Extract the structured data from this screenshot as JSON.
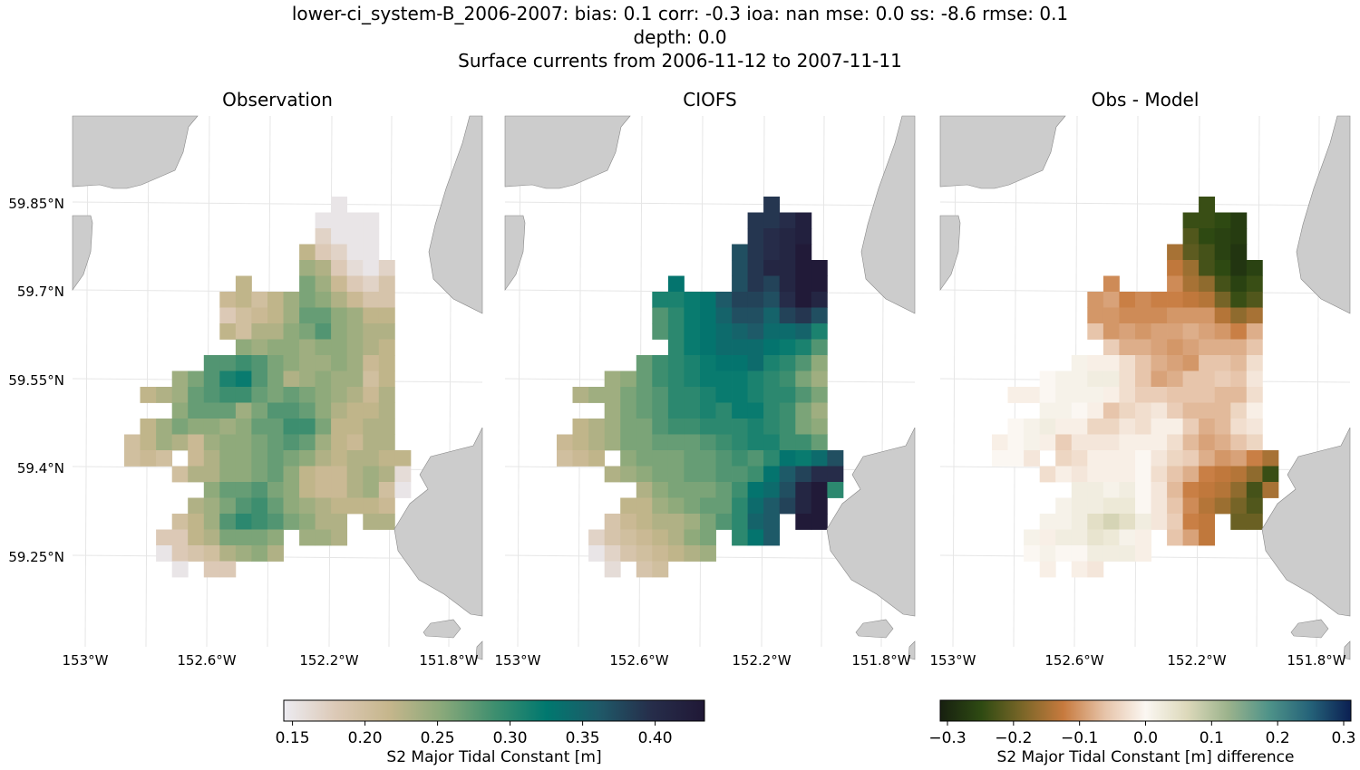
{
  "title": {
    "line1": "lower-ci_system-B_2006-2007: bias: 0.1  corr: -0.3  ioa: nan  mse: 0.0  ss: -8.6  rmse: 0.1",
    "line2": "depth: 0.0",
    "line3": "Surface currents from 2006-11-12 to 2007-11-11"
  },
  "chart_data": {
    "type": "heatmap",
    "panels": [
      "Observation",
      "CIOFS",
      "Obs - Model"
    ],
    "lon_ticks": [
      "153°W",
      "152.6°W",
      "152.2°W",
      "151.8°W"
    ],
    "lat_ticks": [
      "59.85°N",
      "59.7°N",
      "59.55°N",
      "59.4°N",
      "59.25°N"
    ],
    "grid": true,
    "land_color": "#cccccc",
    "value_colorbar": {
      "label": "S2 Major Tidal Constant [m]",
      "range": [
        0.144,
        0.434
      ],
      "ticks": [
        "0.15",
        "0.20",
        "0.25",
        "0.30",
        "0.35",
        "0.40"
      ],
      "colors": [
        "#ecebf1",
        "#dcc9b6",
        "#c6b68c",
        "#8aa97a",
        "#3f8f6f",
        "#00786f",
        "#1f5968",
        "#262d4a",
        "#201836"
      ]
    },
    "diff_colorbar": {
      "label": "S2 Major Tidal Constant [m] difference",
      "range": [
        -0.311,
        0.311
      ],
      "ticks": [
        "−0.3",
        "−0.2",
        "−0.1",
        "0.0",
        "0.1",
        "0.2",
        "0.3"
      ],
      "colors": [
        "#172010",
        "#2e4a12",
        "#7a6628",
        "#c77a3e",
        "#e6c3a8",
        "#fbf7f2",
        "#ddd9bb",
        "#9cb38c",
        "#4f9389",
        "#256379",
        "#0b1f52"
      ]
    },
    "first_col": 0,
    "observation": [
      [
        13,
        [
          0.15
        ]
      ],
      [
        12,
        [
          0.15,
          0.15,
          0.15,
          0.15
        ]
      ],
      [
        12,
        [
          0.17,
          0.15,
          0.15,
          0.15
        ]
      ],
      [
        11,
        [
          0.22,
          0.18,
          0.17,
          0.15,
          0.15
        ]
      ],
      [
        11,
        [
          0.24,
          0.23,
          0.18,
          0.16,
          0.15,
          0.17
        ]
      ],
      [
        7,
        [
          0.22,
          null,
          null,
          null,
          0.26,
          0.24,
          0.21,
          0.18,
          0.17,
          0.19
        ]
      ],
      [
        6,
        [
          0.21,
          0.22,
          0.2,
          0.22,
          0.24,
          0.26,
          0.25,
          0.23,
          0.21,
          0.19,
          0.19
        ]
      ],
      [
        6,
        [
          0.18,
          0.2,
          0.21,
          0.22,
          0.24,
          0.27,
          0.27,
          0.25,
          0.24,
          0.22,
          0.22
        ]
      ],
      [
        6,
        [
          0.22,
          0.2,
          0.23,
          0.23,
          0.25,
          0.26,
          0.28,
          0.25,
          0.24,
          0.23,
          0.23
        ]
      ],
      [
        7,
        [
          0.25,
          0.24,
          0.25,
          0.25,
          0.24,
          0.25,
          0.25,
          0.24,
          0.23,
          0.22
        ]
      ],
      [
        5,
        [
          0.28,
          0.28,
          0.29,
          0.28,
          0.26,
          0.25,
          0.24,
          0.24,
          0.25,
          0.24,
          0.21,
          0.22
        ]
      ],
      [
        3,
        [
          0.24,
          0.26,
          0.28,
          0.31,
          0.32,
          0.28,
          0.26,
          0.23,
          0.24,
          0.25,
          0.24,
          0.24,
          0.2,
          0.22
        ]
      ],
      [
        1,
        [
          0.22,
          0.23,
          0.24,
          0.27,
          0.28,
          0.29,
          0.29,
          0.27,
          0.26,
          0.27,
          0.26,
          0.25,
          0.24,
          0.23,
          0.21,
          0.23
        ]
      ],
      [
        3,
        [
          0.25,
          0.27,
          0.27,
          0.27,
          0.24,
          0.26,
          0.28,
          0.28,
          0.27,
          0.25,
          0.23,
          0.22,
          0.22,
          0.23
        ]
      ],
      [
        1,
        [
          0.22,
          0.24,
          0.26,
          0.25,
          0.25,
          0.24,
          0.25,
          0.27,
          0.27,
          0.29,
          0.29,
          0.26,
          0.22,
          0.22,
          0.23,
          0.23
        ]
      ],
      [
        0,
        [
          0.2,
          0.22,
          0.24,
          0.23,
          0.21,
          0.24,
          0.25,
          0.25,
          0.26,
          0.27,
          0.28,
          0.27,
          0.24,
          0.22,
          0.21,
          0.23,
          0.23
        ]
      ],
      [
        0,
        [
          0.2,
          0.21,
          0.2,
          null,
          0.21,
          0.23,
          0.25,
          0.25,
          0.26,
          0.27,
          0.26,
          0.25,
          0.23,
          0.22,
          0.23,
          0.23,
          0.22,
          0.22
        ]
      ],
      [
        3,
        [
          0.2,
          0.23,
          0.23,
          0.25,
          0.25,
          0.26,
          0.27,
          0.25,
          0.22,
          0.21,
          0.21,
          0.23,
          0.24,
          0.23,
          0.16
        ]
      ],
      [
        5,
        [
          0.25,
          0.27,
          0.27,
          0.28,
          0.26,
          0.25,
          0.22,
          0.21,
          0.21,
          0.23,
          0.24,
          0.2,
          0.15
        ]
      ],
      [
        4,
        [
          0.23,
          0.24,
          0.26,
          0.28,
          0.29,
          0.27,
          0.25,
          0.24,
          0.23,
          0.22,
          0.22,
          0.22,
          0.21
        ]
      ],
      [
        3,
        [
          0.2,
          0.22,
          0.24,
          0.28,
          0.3,
          0.29,
          0.28,
          0.26,
          0.25,
          0.23,
          0.23,
          null,
          0.23,
          0.23
        ]
      ],
      [
        2,
        [
          0.18,
          0.18,
          0.22,
          0.23,
          0.26,
          0.26,
          0.26,
          0.25,
          null,
          0.24,
          0.24,
          0.23
        ]
      ],
      [
        2,
        [
          0.15,
          0.18,
          0.19,
          0.2,
          0.23,
          0.24,
          0.25,
          0.23
        ]
      ],
      [
        3,
        [
          0.15,
          null,
          0.18,
          0.18
        ]
      ]
    ],
    "model": [
      [
        13,
        [
          0.39
        ]
      ],
      [
        12,
        [
          0.39,
          0.39,
          0.4,
          0.42
        ]
      ],
      [
        12,
        [
          0.39,
          0.4,
          0.41,
          0.42
        ]
      ],
      [
        11,
        [
          0.37,
          0.39,
          0.4,
          0.41,
          0.43
        ]
      ],
      [
        11,
        [
          0.37,
          0.39,
          0.41,
          0.41,
          0.43,
          0.43
        ]
      ],
      [
        7,
        [
          0.33,
          null,
          null,
          null,
          0.37,
          0.39,
          0.38,
          0.41,
          0.43,
          0.43
        ]
      ],
      [
        6,
        [
          0.31,
          0.31,
          0.32,
          0.33,
          0.36,
          0.38,
          0.38,
          0.37,
          0.4,
          0.43,
          0.41
        ]
      ],
      [
        6,
        [
          0.28,
          0.3,
          0.32,
          0.33,
          0.35,
          0.37,
          0.37,
          0.35,
          0.38,
          0.39,
          0.37
        ]
      ],
      [
        6,
        [
          0.28,
          0.3,
          0.32,
          0.33,
          0.34,
          0.35,
          0.36,
          0.34,
          0.34,
          0.35,
          0.31
        ]
      ],
      [
        7,
        [
          0.3,
          0.32,
          0.33,
          0.34,
          0.34,
          0.34,
          0.33,
          0.32,
          0.31,
          0.28
        ]
      ],
      [
        5,
        [
          0.27,
          0.29,
          0.3,
          0.31,
          0.32,
          0.33,
          0.33,
          0.34,
          0.31,
          0.3,
          0.28,
          0.25
        ]
      ],
      [
        3,
        [
          0.24,
          0.25,
          0.27,
          0.29,
          0.3,
          0.31,
          0.32,
          0.32,
          0.32,
          0.31,
          0.3,
          0.29,
          0.26,
          0.24
        ]
      ],
      [
        1,
        [
          0.23,
          0.24,
          0.24,
          0.26,
          0.27,
          0.28,
          0.3,
          0.3,
          0.31,
          0.32,
          0.32,
          0.31,
          0.3,
          0.3,
          0.28,
          0.26
        ]
      ],
      [
        3,
        [
          0.24,
          0.26,
          0.27,
          0.28,
          0.3,
          0.3,
          0.31,
          0.3,
          0.32,
          0.32,
          0.3,
          0.29,
          0.26,
          0.24
        ]
      ],
      [
        1,
        [
          0.22,
          0.23,
          0.24,
          0.26,
          0.26,
          0.28,
          0.29,
          0.29,
          0.3,
          0.3,
          0.3,
          0.31,
          0.3,
          0.29,
          0.26,
          0.25
        ]
      ],
      [
        0,
        [
          0.21,
          0.22,
          0.23,
          0.24,
          0.26,
          0.26,
          0.27,
          0.27,
          0.27,
          0.28,
          0.29,
          0.3,
          0.31,
          0.31,
          0.29,
          0.29,
          0.27
        ]
      ],
      [
        0,
        [
          0.2,
          0.21,
          0.22,
          null,
          0.25,
          0.26,
          0.26,
          0.26,
          0.27,
          0.27,
          0.28,
          0.29,
          0.28,
          0.3,
          0.33,
          0.32,
          0.34,
          0.37
        ]
      ],
      [
        3,
        [
          0.23,
          0.24,
          0.25,
          0.26,
          0.26,
          0.27,
          0.27,
          0.28,
          0.28,
          0.29,
          0.33,
          0.36,
          0.38,
          0.4,
          0.4
        ]
      ],
      [
        5,
        [
          0.23,
          0.25,
          0.26,
          0.26,
          0.26,
          0.27,
          0.29,
          0.33,
          0.34,
          0.37,
          0.41,
          0.43,
          0.3
        ]
      ],
      [
        4,
        [
          0.22,
          0.22,
          0.24,
          0.25,
          0.26,
          0.27,
          0.27,
          0.3,
          0.34,
          0.36,
          0.38,
          0.41,
          0.43
        ]
      ],
      [
        3,
        [
          0.19,
          0.21,
          0.22,
          0.23,
          0.23,
          0.24,
          0.26,
          0.28,
          0.3,
          0.35,
          0.36,
          null,
          0.43,
          0.43
        ]
      ],
      [
        2,
        [
          0.17,
          0.19,
          0.2,
          0.21,
          0.22,
          0.23,
          0.25,
          0.26,
          null,
          0.3,
          0.33,
          0.36
        ]
      ],
      [
        2,
        [
          0.15,
          0.17,
          0.19,
          0.2,
          0.21,
          0.22,
          0.23,
          0.24
        ]
      ],
      [
        3,
        [
          0.16,
          null,
          0.19,
          0.2
        ]
      ]
    ]
  }
}
